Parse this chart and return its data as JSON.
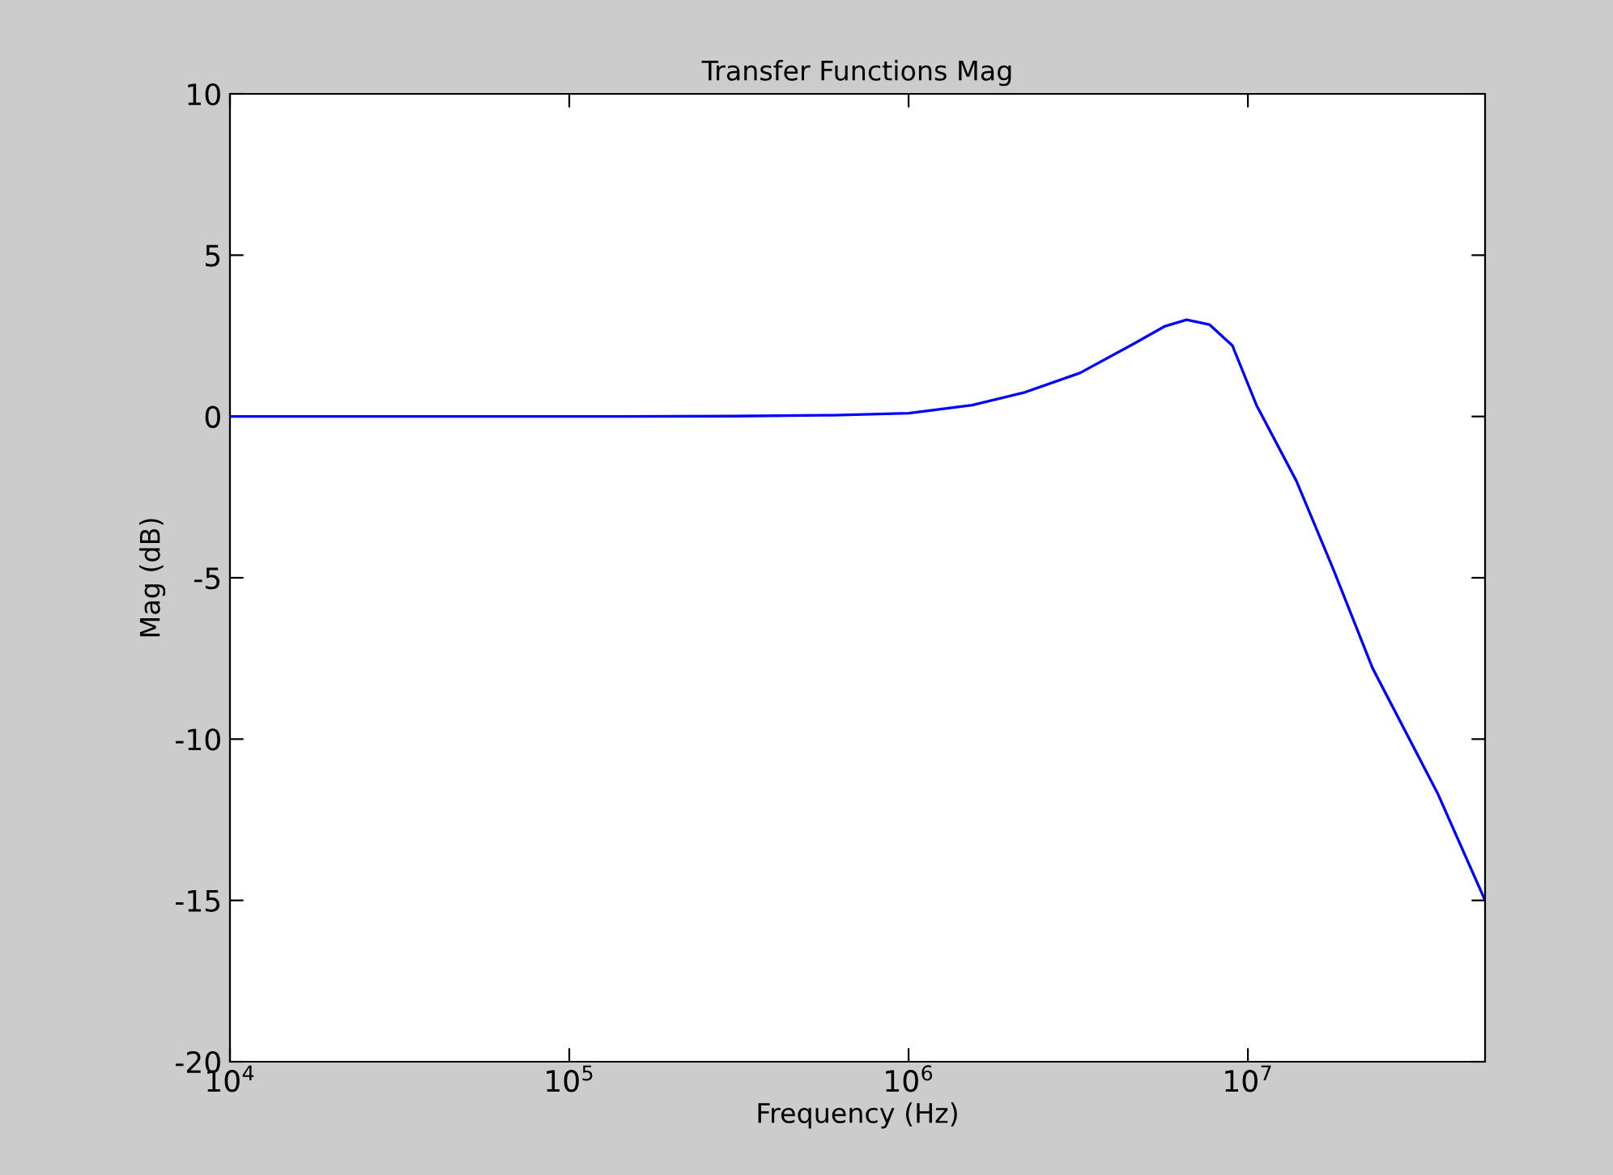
{
  "chart_data": {
    "type": "line",
    "title": "Transfer Functions Mag",
    "xlabel": "Frequency (Hz)",
    "ylabel": "Mag (dB)",
    "log": "x",
    "xlim": [
      10000,
      50000000
    ],
    "ylim": [
      -20,
      10
    ],
    "xticks": [
      {
        "value": 10000,
        "label": "10$^{4}$"
      },
      {
        "value": 100000,
        "label": "10$^{5}$"
      },
      {
        "value": 1000000,
        "label": "10$^{6}$"
      },
      {
        "value": 10000000,
        "label": "10$^{7}$"
      }
    ],
    "yticks": [
      -20,
      -15,
      -10,
      -5,
      0,
      5,
      10
    ],
    "grid": false,
    "legend": false,
    "marker": "none",
    "line_style": "solid",
    "series": [
      {
        "color": "#0000ff",
        "x": [
          10000,
          100000,
          300000,
          600000,
          1000000,
          1540000,
          2200000,
          3200000,
          4600000,
          5700000,
          6600000,
          7700000,
          9000000,
          10600000,
          13900000,
          17800000,
          23300000,
          36300000,
          50000000
        ],
        "values": [
          0,
          0,
          0.01,
          0.04,
          0.1,
          0.35,
          0.75,
          1.35,
          2.25,
          2.8,
          3.0,
          2.85,
          2.2,
          0.35,
          -2.0,
          -4.7,
          -7.8,
          -11.7,
          -15
        ]
      }
    ]
  }
}
